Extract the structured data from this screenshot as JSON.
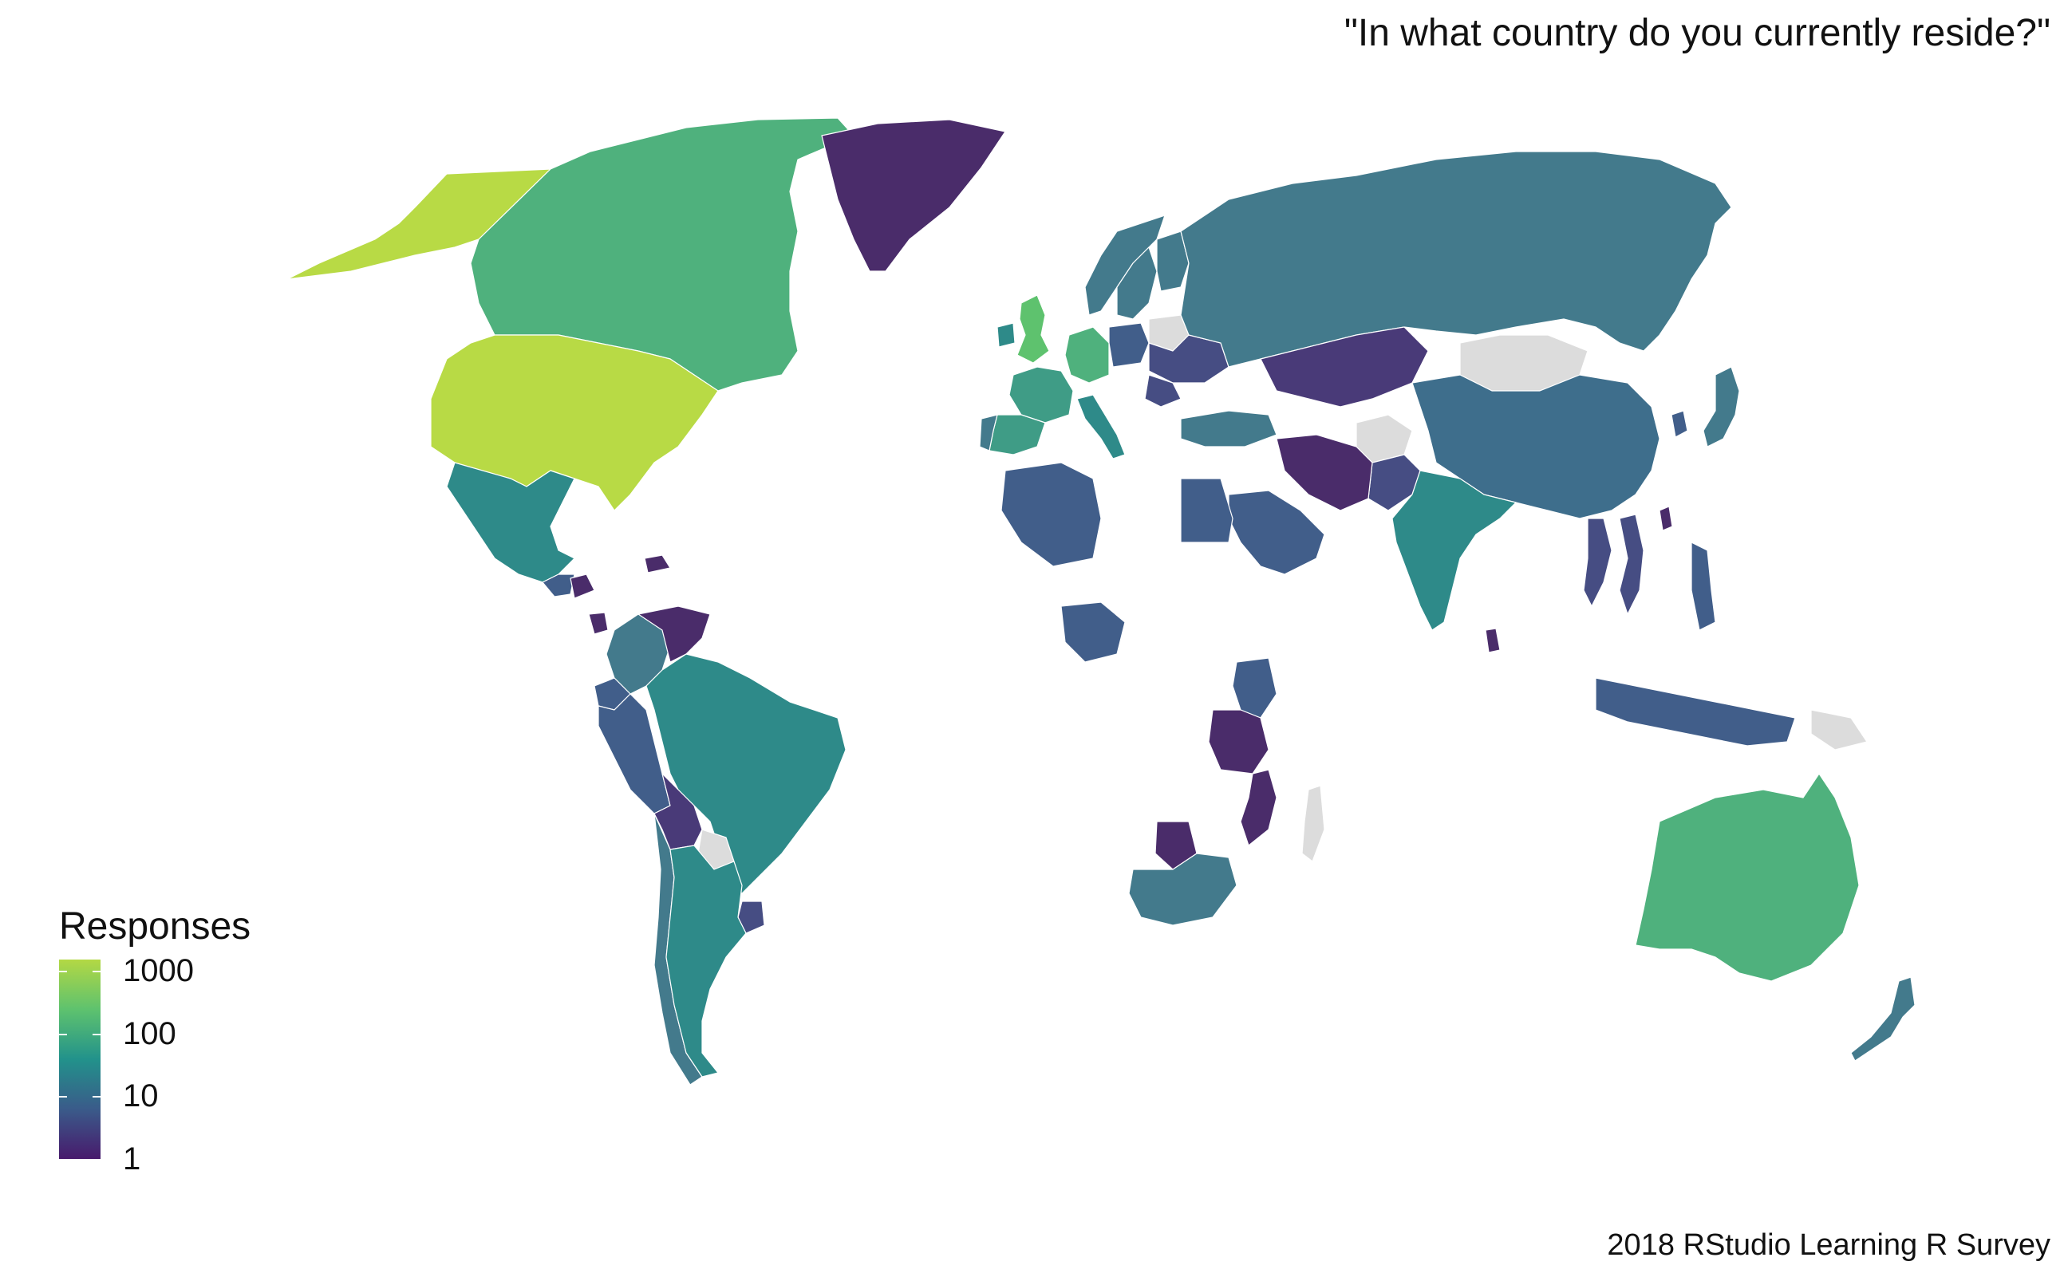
{
  "title": "\"In what country do you currently reside?\"",
  "caption": "2018 RStudio Learning R Survey",
  "legend": {
    "title": "Responses",
    "scale": "log10",
    "range": [
      1,
      1500
    ],
    "palette": "viridis",
    "ticks": [
      {
        "label": "1000",
        "value": 1000
      },
      {
        "label": "100",
        "value": 100
      },
      {
        "label": "10",
        "value": 10
      },
      {
        "label": "1",
        "value": 1
      }
    ]
  },
  "colors": {
    "no_data": "#dcdcdc",
    "v1500": "#b8da45",
    "v1000": "#b3d844",
    "v200": "#5ec26e",
    "v100": "#4fb17d",
    "v50": "#3f9c86",
    "v30": "#2e8a89",
    "v15": "#437a8c",
    "v10": "#3e6e8c",
    "v5": "#415e8a",
    "v3": "#464d83",
    "v2": "#493a78",
    "v1": "#4a2c6a"
  },
  "countries": [
    {
      "name": "United States",
      "value": 1500
    },
    {
      "name": "Alaska",
      "value": 1500
    },
    {
      "name": "Canada",
      "value": 130
    },
    {
      "name": "Mexico",
      "value": 30
    },
    {
      "name": "Greenland",
      "value": 1
    },
    {
      "name": "Guatemala",
      "value": 5
    },
    {
      "name": "Honduras",
      "value": 1
    },
    {
      "name": "Costa Rica",
      "value": 1
    },
    {
      "name": "Dominican Republic",
      "value": 1
    },
    {
      "name": "Colombia",
      "value": 20
    },
    {
      "name": "Venezuela",
      "value": 1
    },
    {
      "name": "Ecuador",
      "value": 5
    },
    {
      "name": "Peru",
      "value": 5
    },
    {
      "name": "Brazil",
      "value": 40
    },
    {
      "name": "Bolivia",
      "value": 2
    },
    {
      "name": "Paraguay",
      "value": 0
    },
    {
      "name": "Uruguay",
      "value": 3
    },
    {
      "name": "Chile",
      "value": 15
    },
    {
      "name": "Argentina",
      "value": 40
    },
    {
      "name": "United Kingdom",
      "value": 250
    },
    {
      "name": "Ireland",
      "value": 30
    },
    {
      "name": "France",
      "value": 60
    },
    {
      "name": "Spain",
      "value": 50
    },
    {
      "name": "Portugal",
      "value": 20
    },
    {
      "name": "Germany",
      "value": 100
    },
    {
      "name": "Italy",
      "value": 30
    },
    {
      "name": "Norway",
      "value": 20
    },
    {
      "name": "Sweden",
      "value": 15
    },
    {
      "name": "Finland",
      "value": 15
    },
    {
      "name": "Poland",
      "value": 5
    },
    {
      "name": "Ukraine",
      "value": 3
    },
    {
      "name": "Belarus",
      "value": 0
    },
    {
      "name": "Romania",
      "value": 3
    },
    {
      "name": "Russia",
      "value": 15
    },
    {
      "name": "Turkey",
      "value": 15
    },
    {
      "name": "Kazakhstan",
      "value": 2
    },
    {
      "name": "Mongolia",
      "value": 0
    },
    {
      "name": "China",
      "value": 8
    },
    {
      "name": "Japan",
      "value": 15
    },
    {
      "name": "South Korea",
      "value": 5
    },
    {
      "name": "Taiwan",
      "value": 1
    },
    {
      "name": "India",
      "value": 40
    },
    {
      "name": "Pakistan",
      "value": 3
    },
    {
      "name": "Afghanistan",
      "value": 0
    },
    {
      "name": "Iran",
      "value": 1
    },
    {
      "name": "Saudi Arabia",
      "value": 5
    },
    {
      "name": "Egypt",
      "value": 4
    },
    {
      "name": "Algeria",
      "value": 5
    },
    {
      "name": "Nigeria",
      "value": 6
    },
    {
      "name": "Kenya",
      "value": 4
    },
    {
      "name": "Tanzania",
      "value": 1
    },
    {
      "name": "Mozambique",
      "value": 1
    },
    {
      "name": "Botswana",
      "value": 1
    },
    {
      "name": "South Africa",
      "value": 20
    },
    {
      "name": "Madagascar",
      "value": 0
    },
    {
      "name": "Thailand",
      "value": 3
    },
    {
      "name": "Vietnam",
      "value": 3
    },
    {
      "name": "Philippines",
      "value": 5
    },
    {
      "name": "Indonesia",
      "value": 5
    },
    {
      "name": "Papua New Guinea",
      "value": 0
    },
    {
      "name": "Australia",
      "value": 100
    },
    {
      "name": "New Zealand",
      "value": 20
    },
    {
      "name": "Sri Lanka",
      "value": 1
    }
  ]
}
